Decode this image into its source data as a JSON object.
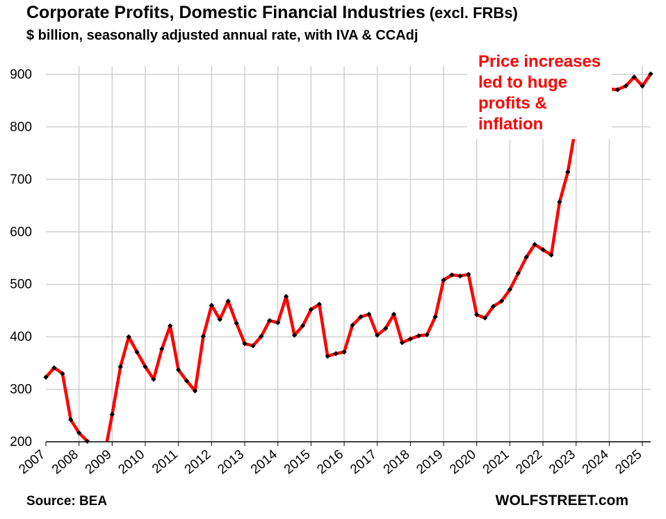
{
  "chart_data": {
    "type": "line",
    "title": "Corporate Profits, Domestic Financial Industries",
    "title_suffix": "(excl.  FRBs)",
    "subtitle": "$ billion, seasonally adjusted annual rate, with IVA & CCAdj",
    "annotation": [
      "Price increases",
      "led to huge",
      "profits &",
      "inflation"
    ],
    "source": "Source: BEA",
    "brand": "WOLFSTREET.com",
    "ylim": [
      200,
      900
    ],
    "yticks": [
      200,
      300,
      400,
      500,
      600,
      700,
      800,
      900
    ],
    "xlim": [
      2007,
      2025.25
    ],
    "xticks": [
      "2007",
      "2008",
      "2009",
      "2010",
      "2011",
      "2012",
      "2013",
      "2014",
      "2015",
      "2016",
      "2017",
      "2018",
      "2019",
      "2020",
      "2021",
      "2022",
      "2023",
      "2024",
      "2025"
    ],
    "grid": true,
    "line_color": "#ff0000",
    "marker_color": "#000000",
    "series": [
      {
        "x": [
          2007.0,
          2007.25,
          2007.5,
          2007.75,
          2008.0,
          2008.25,
          2008.5,
          2008.75,
          2009.0,
          2009.25,
          2009.5,
          2009.75,
          2010.0,
          2010.25,
          2010.5,
          2010.75,
          2011.0,
          2011.25,
          2011.5,
          2011.75,
          2012.0,
          2012.25,
          2012.5,
          2012.75,
          2013.0,
          2013.25,
          2013.5,
          2013.75,
          2014.0,
          2014.25,
          2014.5,
          2014.75,
          2015.0,
          2015.25,
          2015.5,
          2015.75,
          2016.0,
          2016.25,
          2016.5,
          2016.75,
          2017.0,
          2017.25,
          2017.5,
          2017.75,
          2018.0,
          2018.25,
          2018.5,
          2018.75,
          2019.0,
          2019.25,
          2019.5,
          2019.75,
          2020.0,
          2020.25,
          2020.5,
          2020.75,
          2021.0,
          2021.25,
          2021.5,
          2021.75,
          2022.0,
          2022.25,
          2022.5,
          2022.75,
          2023.0,
          2023.25,
          2023.5,
          2023.75,
          2024.0,
          2024.25,
          2024.5,
          2024.75,
          2025.0,
          2025.25
        ],
        "values": [
          323,
          341,
          330,
          242,
          217,
          201,
          185,
          170,
          252,
          343,
          400,
          371,
          343,
          319,
          377,
          421,
          337,
          316,
          297,
          401,
          460,
          433,
          468,
          426,
          387,
          383,
          401,
          431,
          427,
          477,
          403,
          421,
          452,
          462,
          363,
          368,
          371,
          422,
          438,
          443,
          403,
          416,
          443,
          389,
          396,
          402,
          404,
          438,
          508,
          518,
          516,
          519,
          442,
          436,
          458,
          468,
          490,
          521,
          552,
          576,
          566,
          556,
          657,
          714,
          806,
          786,
          791,
          786,
          872,
          871,
          878,
          895,
          878,
          901
        ]
      }
    ]
  }
}
